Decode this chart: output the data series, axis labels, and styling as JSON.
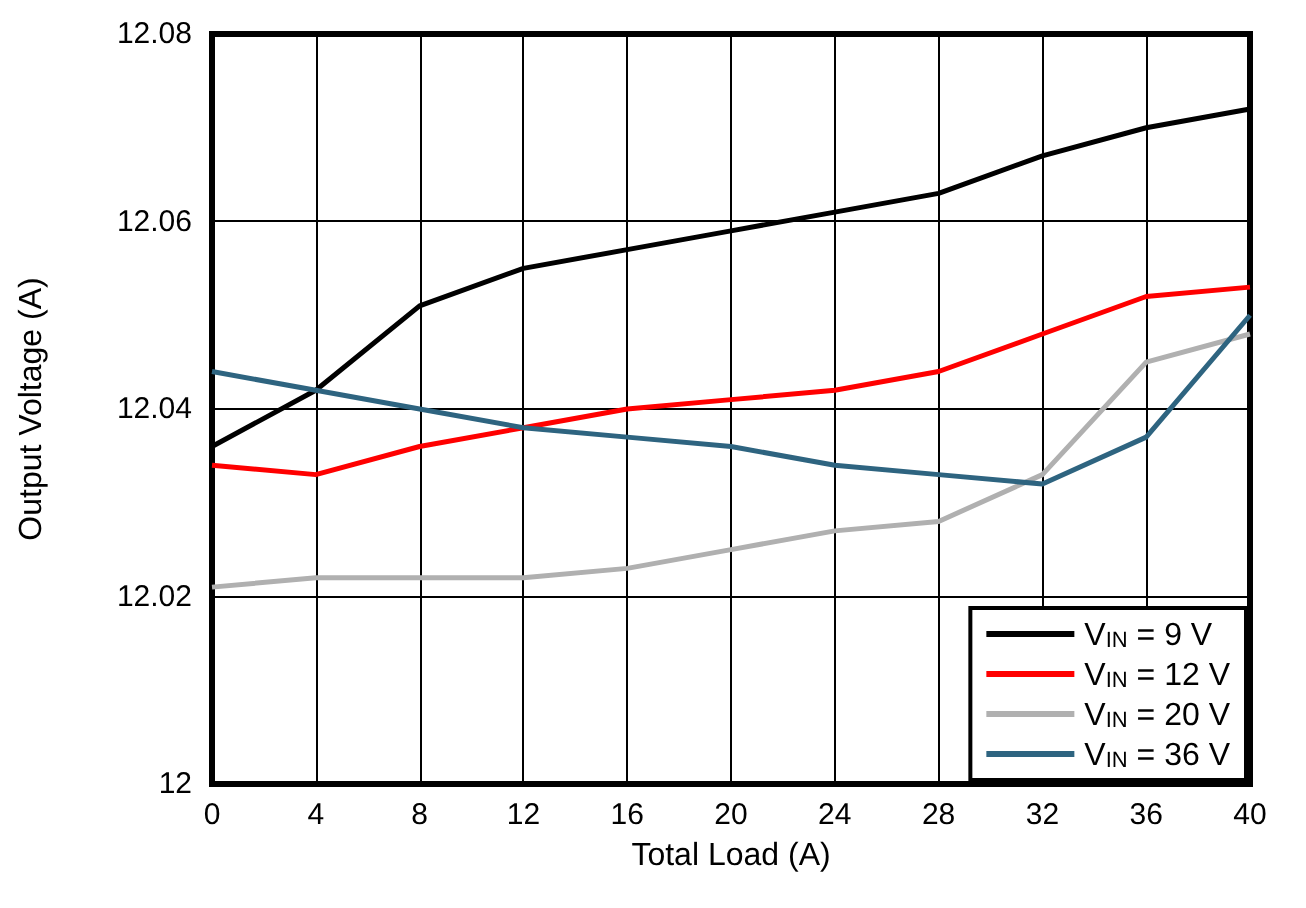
{
  "chart_data": {
    "type": "line",
    "xlabel": "Total Load (A)",
    "ylabel": "Output Voltage (A)",
    "x": [
      0,
      4,
      8,
      12,
      16,
      20,
      24,
      28,
      32,
      36,
      40
    ],
    "xlim": [
      0,
      40
    ],
    "xticks": [
      0,
      4,
      8,
      12,
      16,
      20,
      24,
      28,
      32,
      36,
      40
    ],
    "ylim": [
      12,
      12.08
    ],
    "yticks": [
      12,
      12.02,
      12.04,
      12.06,
      12.08
    ],
    "grid": true,
    "legend": "bottom right",
    "marker": "none",
    "line_style": "solid",
    "series": [
      {
        "name": "V$_{IN}$ = 9 V",
        "color": "#000000",
        "values": [
          12.036,
          12.042,
          12.051,
          12.055,
          12.057,
          12.059,
          12.061,
          12.063,
          12.067,
          12.07,
          12.072
        ]
      },
      {
        "name": "V$_{IN}$ = 12 V",
        "color": "#ff0000",
        "values": [
          12.034,
          12.033,
          12.036,
          12.038,
          12.04,
          12.041,
          12.042,
          12.044,
          12.048,
          12.052,
          12.053
        ]
      },
      {
        "name": "V$_{IN}$ = 20 V",
        "color": "#b0b0b0",
        "values": [
          12.021,
          12.022,
          12.022,
          12.022,
          12.023,
          12.025,
          12.027,
          12.028,
          12.033,
          12.045,
          12.048
        ]
      },
      {
        "name": "V$_{IN}$ = 36 V",
        "color": "#2e6480",
        "values": [
          12.044,
          12.042,
          12.04,
          12.038,
          12.037,
          12.036,
          12.034,
          12.033,
          12.032,
          12.037,
          12.05
        ]
      }
    ]
  }
}
